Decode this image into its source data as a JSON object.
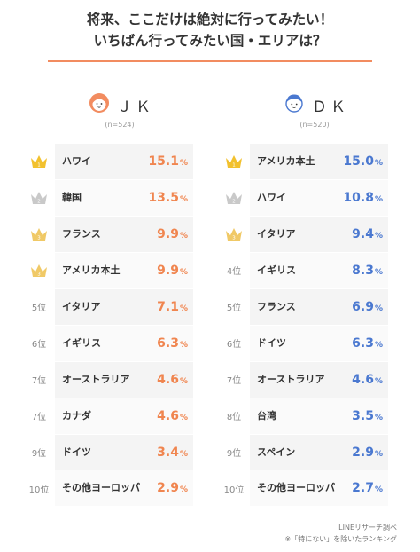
{
  "title": {
    "line1": "将来、ここだけは絶対に行ってみたい！",
    "line2": "いちばん行ってみたい国・エリアは？"
  },
  "colors": {
    "accent": "#f28c60",
    "jk_value": "#f0854f",
    "dk_value": "#4a78d0",
    "gold": "#f2c12e",
    "silver": "#c9c9c9",
    "bronze": "#f0c966"
  },
  "source": {
    "line1": "LINEリサーチ調べ",
    "line2": "※「特にない」を除いたランキング"
  },
  "chart_data": [
    {
      "type": "table",
      "group": "ＪＫ",
      "sample": "(n=524)",
      "unit": "%",
      "rows": [
        {
          "rank": "1",
          "crown": "gold",
          "name": "ハワイ",
          "value": 15.1,
          "value_text": "15.1"
        },
        {
          "rank": "2",
          "crown": "silver",
          "name": "韓国",
          "value": 13.5,
          "value_text": "13.5"
        },
        {
          "rank": "3",
          "crown": "bronze",
          "name": "フランス",
          "value": 9.9,
          "value_text": "9.9"
        },
        {
          "rank": "3",
          "crown": "bronze",
          "name": "アメリカ本土",
          "value": 9.9,
          "value_text": "9.9"
        },
        {
          "rank": "5位",
          "crown": "",
          "name": "イタリア",
          "value": 7.1,
          "value_text": "7.1"
        },
        {
          "rank": "6位",
          "crown": "",
          "name": "イギリス",
          "value": 6.3,
          "value_text": "6.3"
        },
        {
          "rank": "7位",
          "crown": "",
          "name": "オーストラリア",
          "value": 4.6,
          "value_text": "4.6"
        },
        {
          "rank": "7位",
          "crown": "",
          "name": "カナダ",
          "value": 4.6,
          "value_text": "4.6"
        },
        {
          "rank": "9位",
          "crown": "",
          "name": "ドイツ",
          "value": 3.4,
          "value_text": "3.4"
        },
        {
          "rank": "10位",
          "crown": "",
          "name": "その他ヨーロッパ",
          "value": 2.9,
          "value_text": "2.9"
        }
      ]
    },
    {
      "type": "table",
      "group": "ＤＫ",
      "sample": "(n=520)",
      "unit": "%",
      "rows": [
        {
          "rank": "1",
          "crown": "gold",
          "name": "アメリカ本土",
          "value": 15.0,
          "value_text": "15.0"
        },
        {
          "rank": "2",
          "crown": "silver",
          "name": "ハワイ",
          "value": 10.8,
          "value_text": "10.8"
        },
        {
          "rank": "3",
          "crown": "bronze",
          "name": "イタリア",
          "value": 9.4,
          "value_text": "9.4"
        },
        {
          "rank": "4位",
          "crown": "",
          "name": "イギリス",
          "value": 8.3,
          "value_text": "8.3"
        },
        {
          "rank": "5位",
          "crown": "",
          "name": "フランス",
          "value": 6.9,
          "value_text": "6.9"
        },
        {
          "rank": "6位",
          "crown": "",
          "name": "ドイツ",
          "value": 6.3,
          "value_text": "6.3"
        },
        {
          "rank": "7位",
          "crown": "",
          "name": "オーストラリア",
          "value": 4.6,
          "value_text": "4.6"
        },
        {
          "rank": "8位",
          "crown": "",
          "name": "台湾",
          "value": 3.5,
          "value_text": "3.5"
        },
        {
          "rank": "9位",
          "crown": "",
          "name": "スペイン",
          "value": 2.9,
          "value_text": "2.9"
        },
        {
          "rank": "10位",
          "crown": "",
          "name": "その他ヨーロッパ",
          "value": 2.7,
          "value_text": "2.7"
        }
      ]
    }
  ]
}
